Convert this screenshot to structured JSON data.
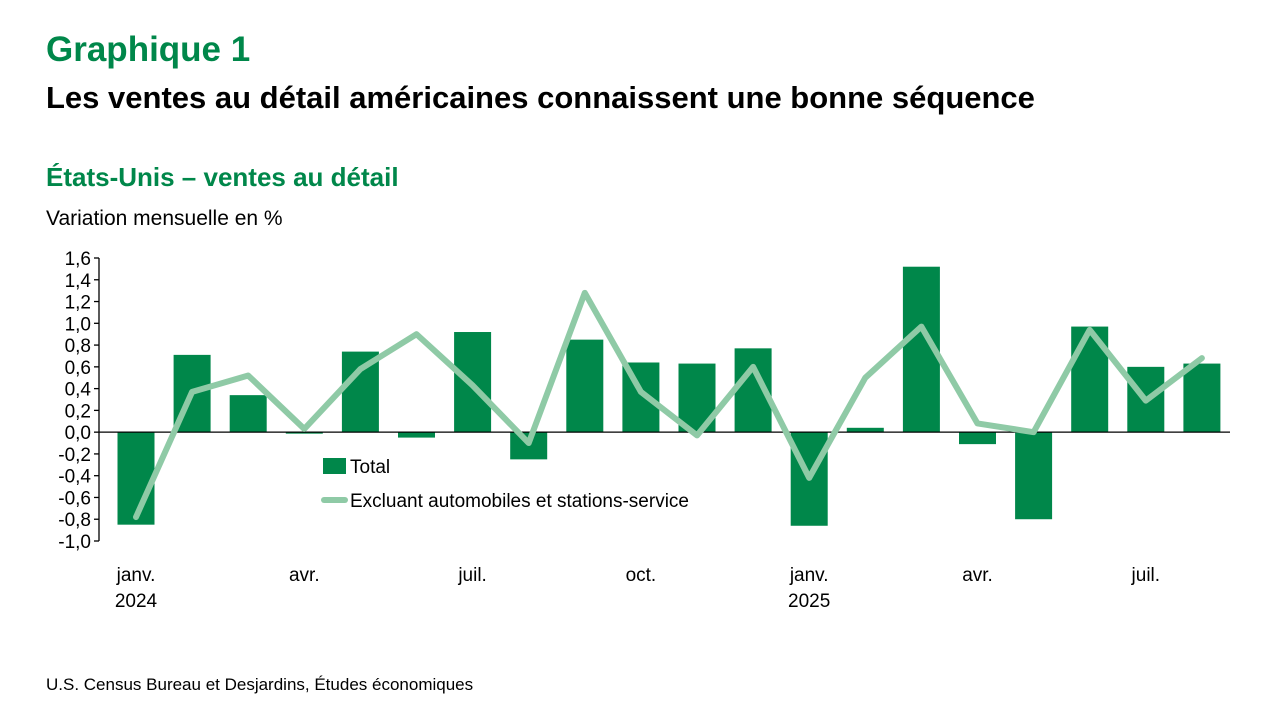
{
  "header": {
    "label": "Graphique 1",
    "title": "Les ventes au détail américaines connaissent une bonne séquence"
  },
  "source": "U.S. Census Bureau et Desjardins, Études économiques",
  "colors": {
    "total": "#00874a",
    "line": "#8fcaa6",
    "title": "#00874a"
  },
  "chart_data": {
    "type": "bar",
    "title": "États-Unis – ventes au détail",
    "ylabel": "Variation mensuelle en %",
    "xlabel": "",
    "ylim": [
      -1.0,
      1.6
    ],
    "yticks": [
      "1,6",
      "1,4",
      "1,2",
      "1,0",
      "0,8",
      "0,6",
      "0,4",
      "0,2",
      "0,0",
      "-0,2",
      "-0,4",
      "-0,6",
      "-0,8",
      "-1,0"
    ],
    "categories": [
      "janv. 2024",
      "févr. 2024",
      "mars 2024",
      "avr. 2024",
      "mai 2024",
      "juin 2024",
      "juil. 2024",
      "août 2024",
      "sept. 2024",
      "oct. 2024",
      "nov. 2024",
      "déc. 2024",
      "janv. 2025",
      "févr. 2025",
      "mars 2025",
      "avr. 2025",
      "mai 2025",
      "juin 2025",
      "juil. 2025",
      "août 2025"
    ],
    "xticks": [
      {
        "index": 0,
        "label": "janv.",
        "year": "2024"
      },
      {
        "index": 3,
        "label": "avr."
      },
      {
        "index": 6,
        "label": "juil."
      },
      {
        "index": 9,
        "label": "oct."
      },
      {
        "index": 12,
        "label": "janv.",
        "year": "2025"
      },
      {
        "index": 15,
        "label": "avr."
      },
      {
        "index": 18,
        "label": "juil."
      }
    ],
    "legend_position": "inside-center-left",
    "series": [
      {
        "name": "Total",
        "type": "bar",
        "values": [
          -0.85,
          0.71,
          0.34,
          -0.01,
          0.74,
          -0.05,
          0.92,
          -0.25,
          0.85,
          0.64,
          0.63,
          0.77,
          -0.86,
          0.04,
          1.52,
          -0.11,
          -0.8,
          0.97,
          0.6,
          0.63
        ]
      },
      {
        "name": "Excluant automobiles et stations-service",
        "type": "line",
        "values": [
          -0.78,
          0.37,
          0.52,
          0.03,
          0.58,
          0.9,
          0.43,
          -0.1,
          1.28,
          0.37,
          -0.03,
          0.6,
          -0.42,
          0.5,
          0.97,
          0.08,
          0.0,
          0.94,
          0.29,
          0.68
        ]
      }
    ]
  }
}
